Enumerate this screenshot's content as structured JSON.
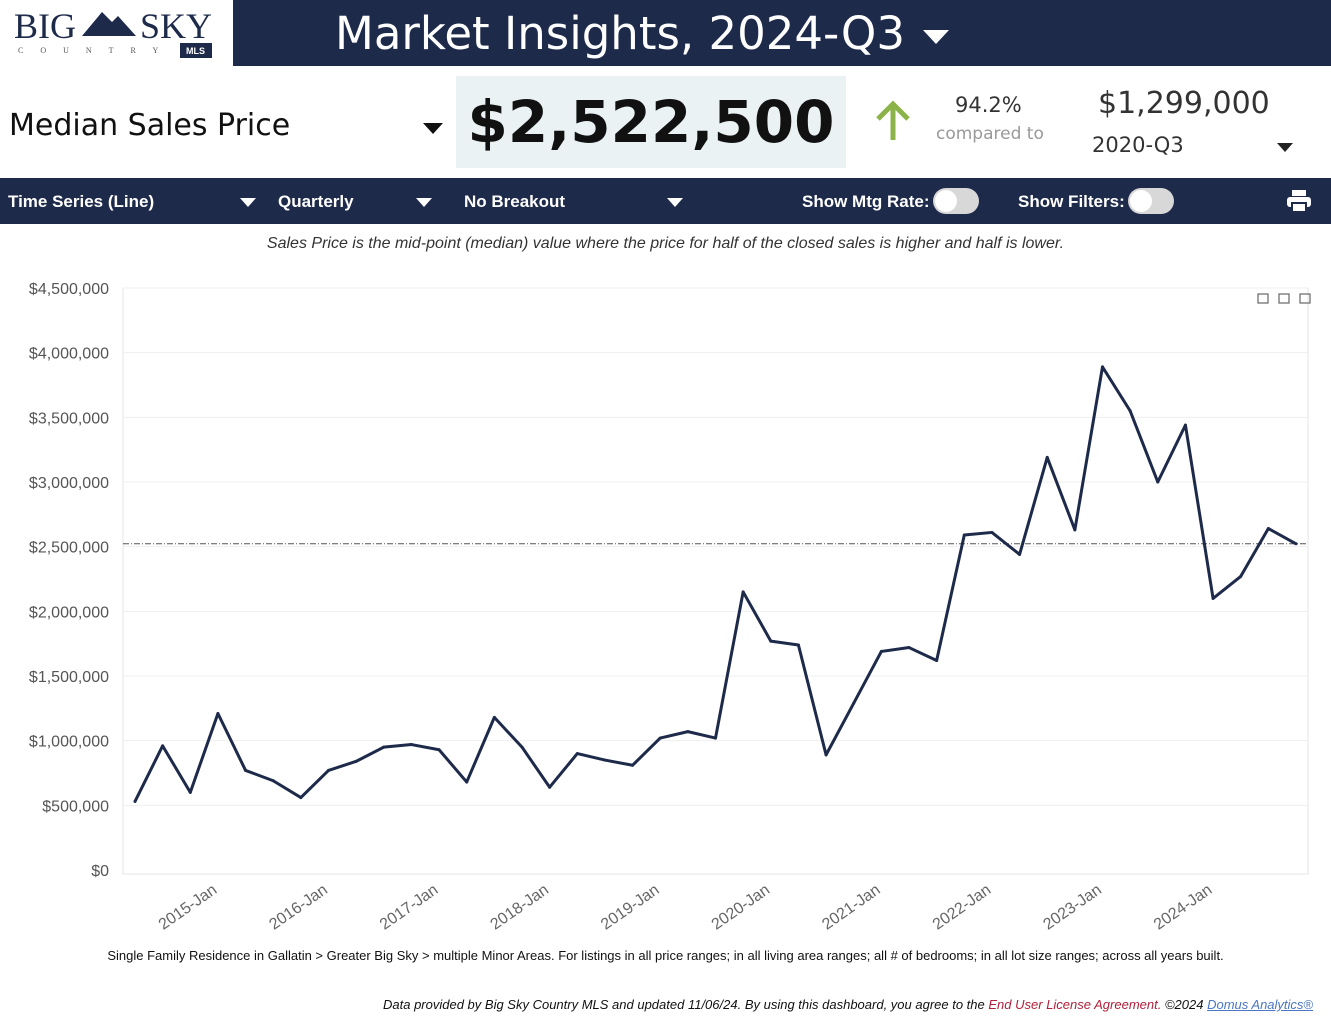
{
  "logo": {
    "text": "BIG SKY",
    "sub": "COUNTRY",
    "badge": "MLS"
  },
  "header": {
    "title": "Market Insights, 2024-Q3"
  },
  "metric": {
    "label": "Median Sales Price",
    "value": "$2,522,500",
    "change_pct": "94.2%",
    "compared_label": "compared to",
    "compare_value": "$1,299,000",
    "compare_period": "2020-Q3",
    "up_color": "#8bb34a"
  },
  "toolbar": {
    "chart_type": "Time Series (Line)",
    "interval": "Quarterly",
    "breakout": "No Breakout",
    "mtg_label": "Show Mtg Rate:",
    "filters_label": "Show Filters:",
    "mtg_on": false,
    "filters_on": false
  },
  "description": "Sales Price is the mid-point (median) value where the price for half of the closed sales is higher and half is lower.",
  "chart_data": {
    "type": "line",
    "y_ticks": [
      "$0",
      "$500,000",
      "$1,000,000",
      "$1,500,000",
      "$2,000,000",
      "$2,500,000",
      "$3,000,000",
      "$3,500,000",
      "$4,000,000",
      "$4,500,000"
    ],
    "ylim": [
      0,
      4500000
    ],
    "x_ticks": [
      "2015-Jan",
      "2016-Jan",
      "2017-Jan",
      "2018-Jan",
      "2019-Jan",
      "2020-Jan",
      "2021-Jan",
      "2022-Jan",
      "2023-Jan",
      "2024-Jan"
    ],
    "reference_value": 2522500,
    "values": [
      530000,
      960000,
      600000,
      1210000,
      770000,
      690000,
      560000,
      770000,
      840000,
      950000,
      970000,
      930000,
      680000,
      1180000,
      950000,
      640000,
      900000,
      850000,
      810000,
      1020000,
      1070000,
      1020000,
      2150000,
      1770000,
      1740000,
      890000,
      1290000,
      1690000,
      1720000,
      1620000,
      2590000,
      2610000,
      2440000,
      3190000,
      2630000,
      3890000,
      3550000,
      3000000,
      3440000,
      2100000,
      2270000,
      2640000,
      2522500
    ],
    "line_color": "#1e2a4a"
  },
  "footer": {
    "scope": "Single Family Residence in Gallatin > Greater Big Sky > multiple Minor Areas. For listings in all price ranges; in all living area ranges; all # of bedrooms; in all lot size ranges; across all years built.",
    "credit": "Data provided by Big Sky Country MLS and updated 11/06/24.  By using this dashboard, you agree to the",
    "eula": "End User License Agreement.",
    "copyright": " ©2024",
    "vendor": "Domus Analytics®"
  }
}
